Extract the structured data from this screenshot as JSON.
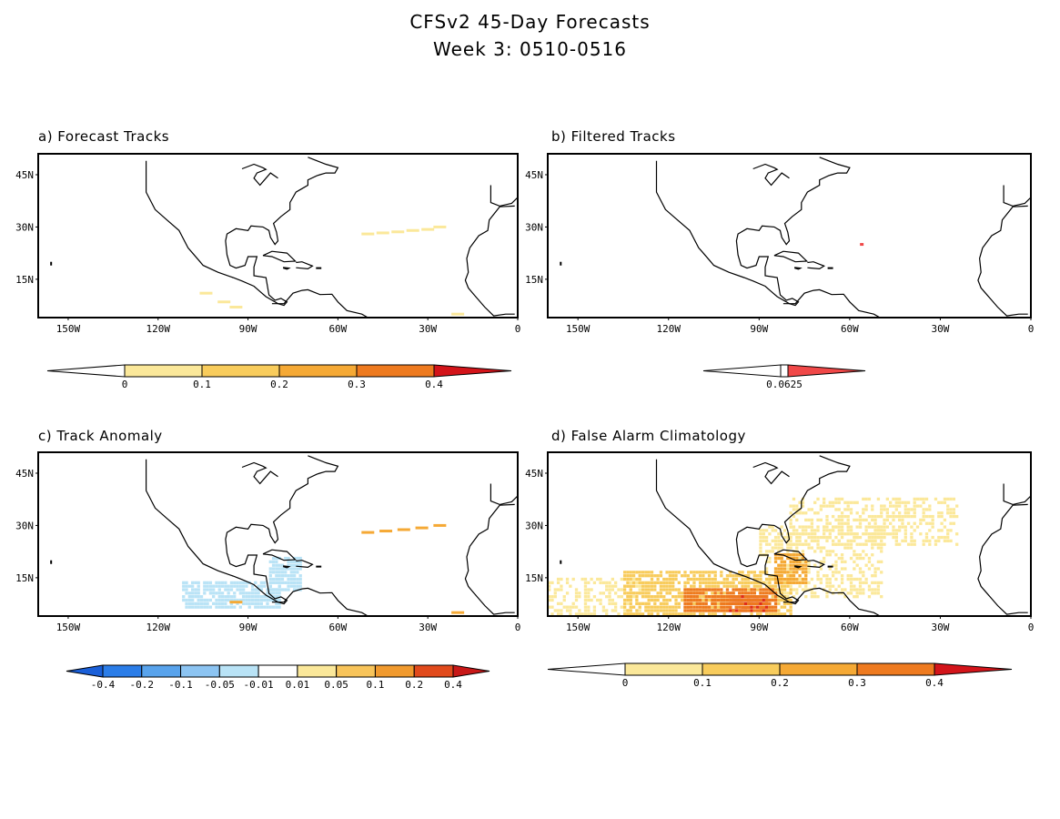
{
  "title": {
    "line1": "CFSv2 45-Day Forecasts",
    "line2": "Week 3: 0510-0516"
  },
  "lat_labels": [
    "45N",
    "30N",
    "15N"
  ],
  "lon_labels": [
    "150W",
    "120W",
    "90W",
    "60W",
    "30W",
    "0"
  ],
  "panels": [
    {
      "id": "a",
      "label": "a) Forecast Tracks",
      "colorbar": {
        "labels": [
          "0",
          "0.1",
          "0.2",
          "0.3",
          "0.4"
        ],
        "colors": [
          "#fbe89a",
          "#f8cc5c",
          "#f5a935",
          "#ee7a1f",
          "#df2d18",
          "#d3141a"
        ]
      },
      "tracks": [
        {
          "lon": -50,
          "lat": 28,
          "level": 1
        },
        {
          "lon": -45,
          "lat": 28.3,
          "level": 1
        },
        {
          "lon": -40,
          "lat": 28.6,
          "level": 1
        },
        {
          "lon": -35,
          "lat": 29,
          "level": 1
        },
        {
          "lon": -30,
          "lat": 29.3,
          "level": 1
        },
        {
          "lon": -26,
          "lat": 30,
          "level": 1
        },
        {
          "lon": -104,
          "lat": 11,
          "level": 1
        },
        {
          "lon": -98,
          "lat": 8.5,
          "level": 1
        },
        {
          "lon": -94,
          "lat": 7,
          "level": 1
        },
        {
          "lon": -20,
          "lat": 5,
          "level": 1
        }
      ]
    },
    {
      "id": "b",
      "label": "b) Filtered Tracks",
      "colorbar": {
        "labels": [
          "0.0625"
        ],
        "colors": [
          "#ffffff",
          "#f04848"
        ]
      },
      "tracks": [
        {
          "lon": -56,
          "lat": 25,
          "level": 1
        }
      ]
    },
    {
      "id": "c",
      "label": "c) Track Anomaly",
      "colorbar": {
        "labels": [
          "-0.4",
          "-0.2",
          "-0.1",
          "-0.05",
          "-0.01",
          "0.01",
          "0.05",
          "0.1",
          "0.2",
          "0.4"
        ],
        "colors": [
          "#1a5fd8",
          "#2b7de8",
          "#58a3ec",
          "#8cc4f2",
          "#b9e3f6",
          "#ffffff",
          "#fbe89a",
          "#f8c45a",
          "#f19a2e",
          "#e14a1c",
          "#c81818"
        ]
      },
      "anomaly_regions": [
        {
          "lon": [
            -112,
            -80
          ],
          "lat": [
            7,
            14
          ],
          "sign": "negative"
        },
        {
          "lon": [
            -83,
            -73
          ],
          "lat": [
            12,
            21
          ],
          "sign": "negative"
        }
      ],
      "tracks": [
        {
          "lon": -50,
          "lat": 28,
          "level": 2
        },
        {
          "lon": -44,
          "lat": 28.4,
          "level": 2
        },
        {
          "lon": -38,
          "lat": 28.8,
          "level": 2
        },
        {
          "lon": -32,
          "lat": 29.3,
          "level": 2
        },
        {
          "lon": -26,
          "lat": 30,
          "level": 2
        },
        {
          "lon": -94,
          "lat": 8,
          "level": 2
        },
        {
          "lon": -20,
          "lat": 5,
          "level": 2
        }
      ]
    },
    {
      "id": "d",
      "label": "d) False Alarm Climatology",
      "colorbar": {
        "labels": [
          "0",
          "0.1",
          "0.2",
          "0.3",
          "0.4"
        ],
        "colors": [
          "#fbe89a",
          "#f8cc5c",
          "#f5a935",
          "#ee7a1f",
          "#df2d18",
          "#d3141a"
        ]
      },
      "density_regions": [
        {
          "lon": [
            -115,
            -85
          ],
          "lat": [
            6,
            12
          ],
          "level": 4
        },
        {
          "lon": [
            -100,
            -88
          ],
          "lat": [
            6,
            10
          ],
          "level": 5
        },
        {
          "lon": [
            -85,
            -75
          ],
          "lat": [
            14,
            22
          ],
          "level": 3
        },
        {
          "lon": [
            -135,
            -80
          ],
          "lat": [
            5,
            17
          ],
          "level": 2
        },
        {
          "lon": [
            -90,
            -50
          ],
          "lat": [
            10,
            30
          ],
          "level": 1
        },
        {
          "lon": [
            -80,
            -25
          ],
          "lat": [
            25,
            38
          ],
          "level": 1
        },
        {
          "lon": [
            -160,
            -130
          ],
          "lat": [
            5,
            15
          ],
          "level": 1
        }
      ]
    }
  ]
}
